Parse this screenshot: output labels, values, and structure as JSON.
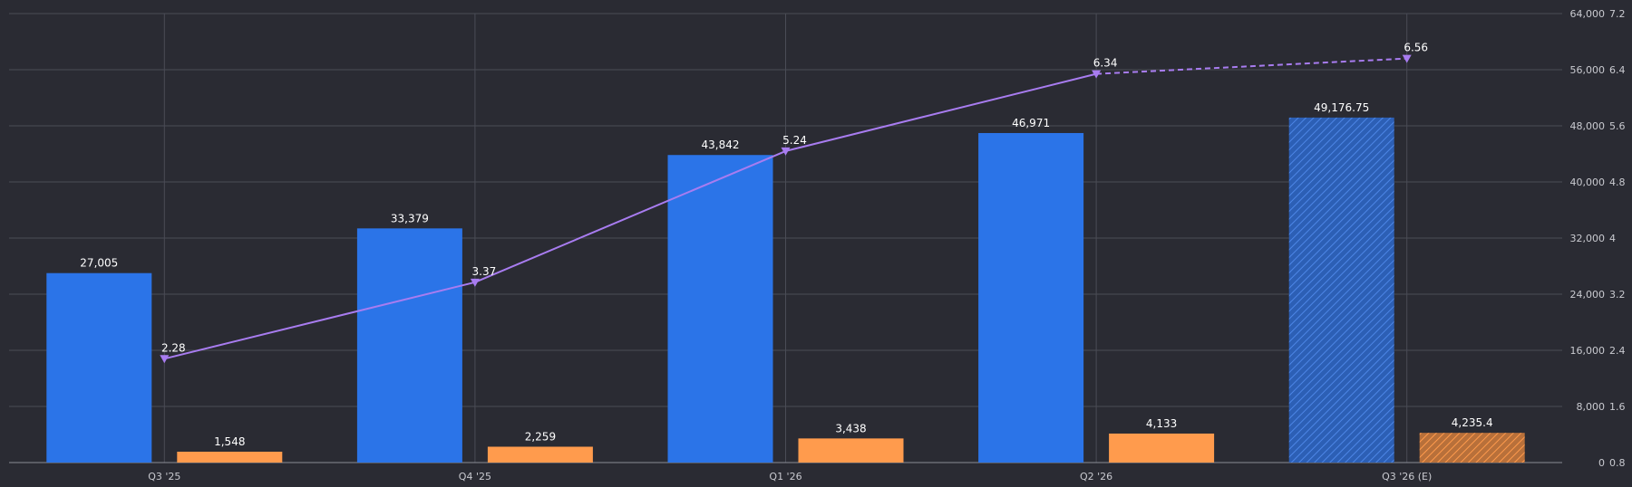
{
  "chart_data": {
    "type": "bar",
    "categories": [
      "Q3 '25",
      "Q4 '25",
      "Q1 '26",
      "Q2 '26",
      "Q3 '26 (E)"
    ],
    "estimated_index": 4,
    "series": [
      {
        "kind": "bar",
        "axis": "left",
        "color": "#2b74e8",
        "values": [
          27005,
          33379,
          43842,
          46971,
          49176.75
        ],
        "labels": [
          "27,005",
          "33,379",
          "43,842",
          "46,971",
          "49,176.75"
        ]
      },
      {
        "kind": "bar",
        "axis": "left",
        "color": "#ff9b4d",
        "values": [
          1548,
          2259,
          3438,
          4133,
          4235.4
        ],
        "labels": [
          "1,548",
          "2,259",
          "3,438",
          "4,133",
          "4,235.4"
        ]
      },
      {
        "kind": "line",
        "axis": "right",
        "color": "#a87cf0",
        "marker": "triangle-down",
        "values": [
          2.28,
          3.37,
          5.24,
          6.34,
          6.56
        ],
        "labels": [
          "2.28",
          "3.37",
          "5.24",
          "6.34",
          "6.56"
        ]
      }
    ],
    "y_left": {
      "range": [
        0,
        64000
      ],
      "ticks": [
        0,
        8000,
        16000,
        24000,
        32000,
        40000,
        48000,
        56000,
        64000
      ],
      "tick_labels": [
        "0",
        "8,000",
        "16,000",
        "24,000",
        "32,000",
        "40,000",
        "48,000",
        "56,000",
        "64,000"
      ]
    },
    "y_right": {
      "range": [
        0.8,
        7.2
      ],
      "ticks": [
        0.8,
        1.6,
        2.4,
        3.2,
        4,
        4.8,
        5.6,
        6.4,
        7.2
      ],
      "tick_labels": [
        "0.8",
        "1.6",
        "2.4",
        "3.2",
        "4",
        "4.8",
        "5.6",
        "6.4",
        "7.2"
      ]
    },
    "grid": true,
    "legend": "none"
  }
}
